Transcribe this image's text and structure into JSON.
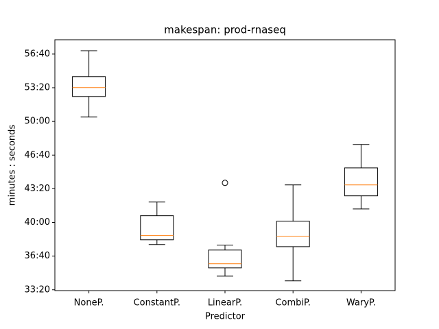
{
  "chart_data": {
    "type": "box",
    "title": "makespan: prod-rnaseq",
    "xlabel": "Predictor",
    "ylabel": "minutes : seconds",
    "categories": [
      "NoneP.",
      "ConstantP.",
      "LinearP.",
      "CombiP.",
      "WaryP."
    ],
    "boxes": [
      {
        "whislo": 3026,
        "q1": 3148,
        "med": 3201,
        "q3": 3266,
        "whishi": 3420,
        "fliers": []
      },
      {
        "whislo": 2269,
        "q1": 2297,
        "med": 2322,
        "q3": 2440,
        "whishi": 2521,
        "fliers": []
      },
      {
        "whislo": 2081,
        "q1": 2130,
        "med": 2155,
        "q3": 2236,
        "whishi": 2265,
        "fliers": [
          2635
        ]
      },
      {
        "whislo": 2053,
        "q1": 2256,
        "med": 2317,
        "q3": 2407,
        "whishi": 2623,
        "fliers": []
      },
      {
        "whislo": 2480,
        "q1": 2558,
        "med": 2623,
        "q3": 2724,
        "whishi": 2863,
        "fliers": []
      }
    ],
    "box_color": "#000000",
    "median_color": "#ff7f0e",
    "ylim": [
      1995,
      3485
    ],
    "yticks": [
      {
        "value": 2000,
        "label": "33:20"
      },
      {
        "value": 2200,
        "label": "36:40"
      },
      {
        "value": 2400,
        "label": "40:00"
      },
      {
        "value": 2600,
        "label": "43:20"
      },
      {
        "value": 2800,
        "label": "46:40"
      },
      {
        "value": 3000,
        "label": "50:00"
      },
      {
        "value": 3200,
        "label": "53:20"
      },
      {
        "value": 3400,
        "label": "56:40"
      }
    ],
    "grid": false
  }
}
